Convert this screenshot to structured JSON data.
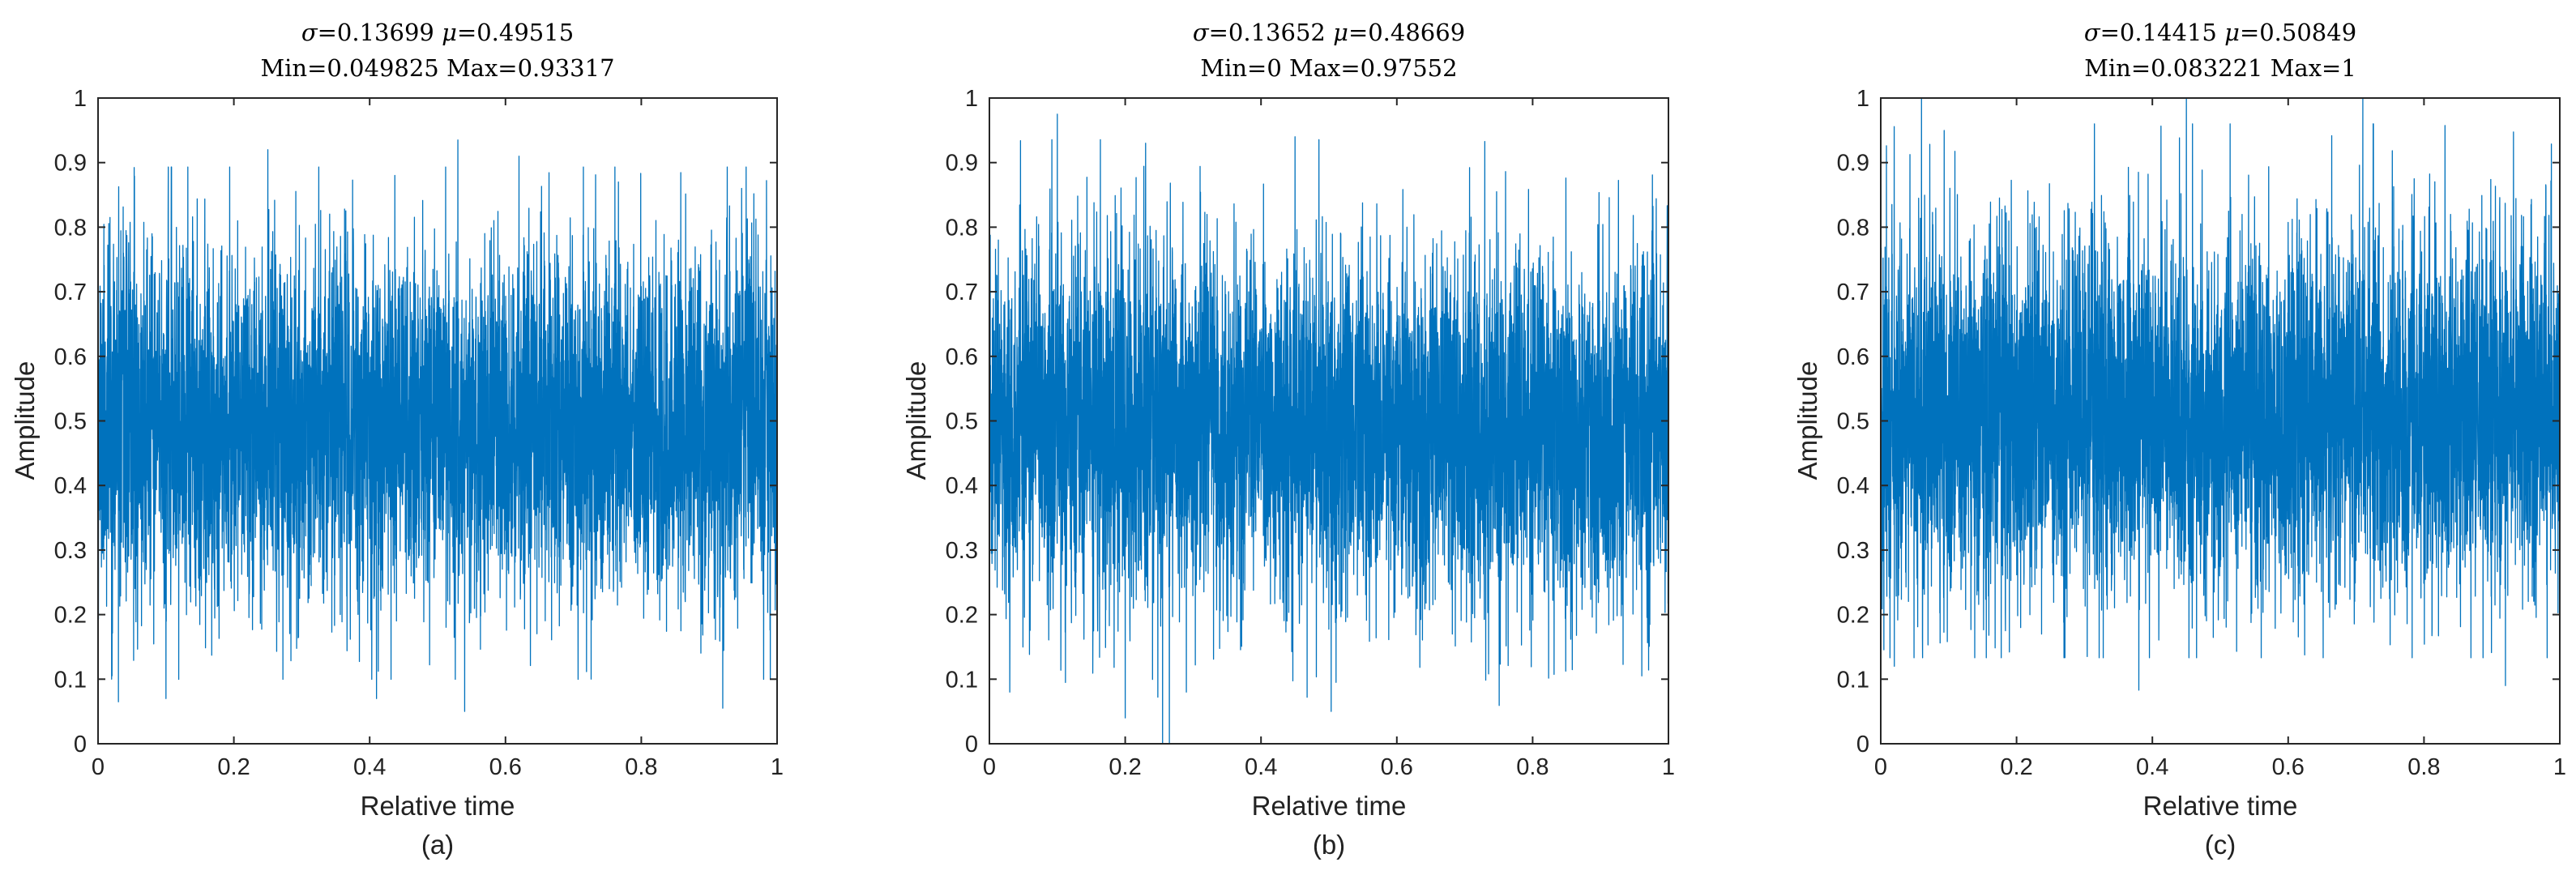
{
  "chart_data": [
    {
      "type": "line",
      "title": "σ=0.13699 μ=0.49515 Min=0.049825 Max=0.93317",
      "title_parts": {
        "sigma_label": "σ",
        "sigma_value": "=0.13699",
        "mu_label": "μ",
        "mu_value": "=0.49515",
        "line2": "Min=0.049825 Max=0.93317"
      },
      "stats": {
        "sigma": 0.13699,
        "mu": 0.49515,
        "min": 0.049825,
        "max": 0.93317
      },
      "xlabel": "Relative time",
      "ylabel": "Amplitude",
      "caption": "(a)",
      "xlim": [
        0,
        1
      ],
      "ylim": [
        0,
        1
      ],
      "xticks": [
        0,
        0.2,
        0.4,
        0.6,
        0.8,
        1
      ],
      "xtick_labels": [
        "0",
        "0.2",
        "0.4",
        "0.6",
        "0.8",
        "1"
      ],
      "yticks": [
        0,
        0.1,
        0.2,
        0.3,
        0.4,
        0.5,
        0.6,
        0.7,
        0.8,
        0.9,
        1
      ],
      "ytick_labels": [
        "0",
        "0.1",
        "0.2",
        "0.3",
        "0.4",
        "0.5",
        "0.6",
        "0.7",
        "0.8",
        "0.9",
        "1"
      ],
      "grid": false,
      "series": [
        {
          "color": "#0072BD",
          "seed": 11,
          "n_points": 5000,
          "outliers": [
            [
              0.02,
              0.1
            ],
            [
              0.03,
              0.065
            ],
            [
              0.1,
              0.07
            ],
            [
              0.25,
              0.92
            ],
            [
              0.41,
              0.07
            ],
            [
              0.54,
              0.05
            ],
            [
              0.53,
              0.935
            ],
            [
              0.62,
              0.91
            ],
            [
              0.92,
              0.055
            ],
            [
              0.99,
              0.1
            ]
          ]
        }
      ]
    },
    {
      "type": "line",
      "title": "σ=0.13652 μ=0.48669 Min=0 Max=0.97552",
      "title_parts": {
        "sigma_label": "σ",
        "sigma_value": "=0.13652",
        "mu_label": "μ",
        "mu_value": "=0.48669",
        "line2": "Min=0 Max=0.97552"
      },
      "stats": {
        "sigma": 0.13652,
        "mu": 0.48669,
        "min": 0,
        "max": 0.97552
      },
      "xlabel": "Relative time",
      "ylabel": "Amplitude",
      "caption": "(b)",
      "xlim": [
        0,
        1
      ],
      "ylim": [
        0,
        1
      ],
      "xticks": [
        0,
        0.2,
        0.4,
        0.6,
        0.8,
        1
      ],
      "xtick_labels": [
        "0",
        "0.2",
        "0.4",
        "0.6",
        "0.8",
        "1"
      ],
      "yticks": [
        0,
        0.1,
        0.2,
        0.3,
        0.4,
        0.5,
        0.6,
        0.7,
        0.8,
        0.9,
        1
      ],
      "ytick_labels": [
        "0",
        "0.1",
        "0.2",
        "0.3",
        "0.4",
        "0.5",
        "0.6",
        "0.7",
        "0.8",
        "0.9",
        "1"
      ],
      "grid": false,
      "series": [
        {
          "color": "#0072BD",
          "seed": 23,
          "n_points": 5000,
          "outliers": [
            [
              0.1,
              0.975
            ],
            [
              0.2,
              0.04
            ],
            [
              0.23,
              0.93
            ],
            [
              0.255,
              0.0
            ],
            [
              0.265,
              0.0
            ],
            [
              0.29,
              0.08
            ],
            [
              0.45,
              0.94
            ],
            [
              0.03,
              0.08
            ]
          ]
        }
      ]
    },
    {
      "type": "line",
      "title": "σ=0.14415 μ=0.50849 Min=0.083221 Max=1",
      "title_parts": {
        "sigma_label": "σ",
        "sigma_value": "=0.14415",
        "mu_label": "μ",
        "mu_value": "=0.50849",
        "line2": "Min=0.083221 Max=1"
      },
      "stats": {
        "sigma": 0.14415,
        "mu": 0.50849,
        "min": 0.083221,
        "max": 1
      },
      "xlabel": "Relative time",
      "ylabel": "Amplitude",
      "caption": "(c)",
      "xlim": [
        0,
        1
      ],
      "ylim": [
        0,
        1
      ],
      "xticks": [
        0,
        0.2,
        0.4,
        0.6,
        0.8,
        1
      ],
      "xtick_labels": [
        "0",
        "0.2",
        "0.4",
        "0.6",
        "0.8",
        "1"
      ],
      "yticks": [
        0,
        0.1,
        0.2,
        0.3,
        0.4,
        0.5,
        0.6,
        0.7,
        0.8,
        0.9,
        1
      ],
      "ytick_labels": [
        "0",
        "0.1",
        "0.2",
        "0.3",
        "0.4",
        "0.5",
        "0.6",
        "0.7",
        "0.8",
        "0.9",
        "1"
      ],
      "grid": false,
      "series": [
        {
          "color": "#0072BD",
          "seed": 37,
          "n_points": 5000,
          "outliers": [
            [
              0.06,
              1.0
            ],
            [
              0.45,
              1.0
            ],
            [
              0.71,
              1.0
            ],
            [
              0.38,
              0.083
            ],
            [
              0.02,
              0.12
            ],
            [
              0.92,
              0.09
            ]
          ]
        }
      ]
    }
  ]
}
